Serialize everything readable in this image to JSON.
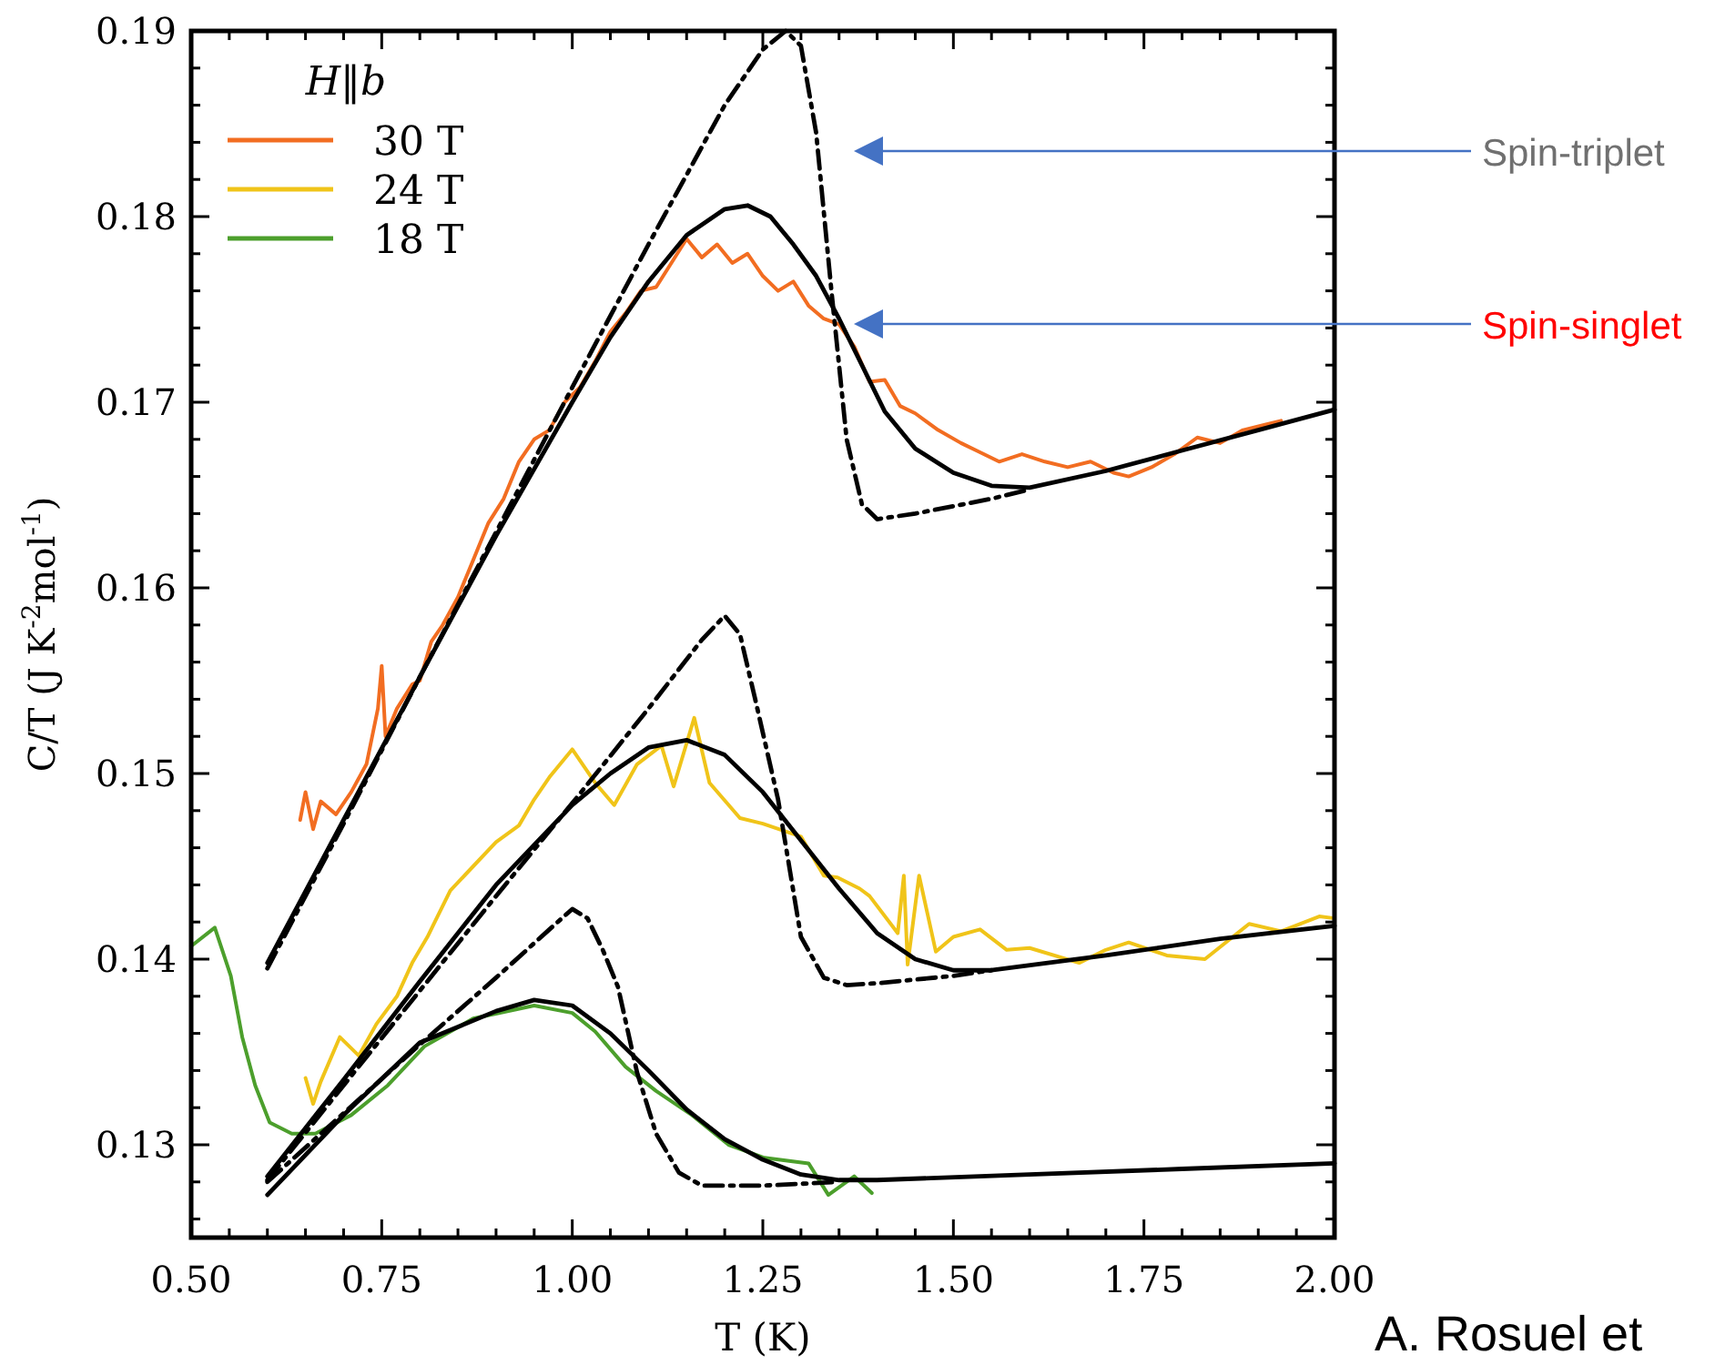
{
  "chart_data": {
    "type": "line",
    "xlabel": "T (K)",
    "ylabel": "C/T (J K$^{-2}$mol$^{-1}$)",
    "legend_title": "H‖b",
    "legend": "top left",
    "grid": false,
    "xlim": [
      0.5,
      2.0
    ],
    "ylim": [
      0.125,
      0.19
    ],
    "xticks": [
      {
        "value": 0.5,
        "label": "0.50"
      },
      {
        "value": 0.55,
        "label": null
      },
      {
        "value": 0.6,
        "label": null
      },
      {
        "value": 0.65,
        "label": null
      },
      {
        "value": 0.7,
        "label": null
      },
      {
        "value": 0.75,
        "label": "0.75"
      },
      {
        "value": 0.8,
        "label": null
      },
      {
        "value": 0.85,
        "label": null
      },
      {
        "value": 0.9,
        "label": null
      },
      {
        "value": 0.95,
        "label": null
      },
      {
        "value": 1.0,
        "label": "1.00"
      },
      {
        "value": 1.05,
        "label": null
      },
      {
        "value": 1.1,
        "label": null
      },
      {
        "value": 1.15,
        "label": null
      },
      {
        "value": 1.2,
        "label": null
      },
      {
        "value": 1.25,
        "label": "1.25"
      },
      {
        "value": 1.3,
        "label": null
      },
      {
        "value": 1.35,
        "label": null
      },
      {
        "value": 1.4,
        "label": null
      },
      {
        "value": 1.45,
        "label": null
      },
      {
        "value": 1.5,
        "label": "1.50"
      },
      {
        "value": 1.55,
        "label": null
      },
      {
        "value": 1.6,
        "label": null
      },
      {
        "value": 1.65,
        "label": null
      },
      {
        "value": 1.7,
        "label": null
      },
      {
        "value": 1.75,
        "label": "1.75"
      },
      {
        "value": 1.8,
        "label": null
      },
      {
        "value": 1.85,
        "label": null
      },
      {
        "value": 1.9,
        "label": null
      },
      {
        "value": 1.95,
        "label": null
      },
      {
        "value": 2.0,
        "label": "2.00"
      }
    ],
    "yticks": [
      {
        "value": 0.126,
        "label": null
      },
      {
        "value": 0.128,
        "label": null
      },
      0.13,
      {
        "value": 0.132,
        "label": null
      },
      {
        "value": 0.134,
        "label": null
      },
      {
        "value": 0.136,
        "label": null
      },
      {
        "value": 0.138,
        "label": null
      },
      0.14,
      {
        "value": 0.142,
        "label": null
      },
      {
        "value": 0.144,
        "label": null
      },
      {
        "value": 0.146,
        "label": null
      },
      {
        "value": 0.148,
        "label": null
      },
      0.15,
      {
        "value": 0.152,
        "label": null
      },
      {
        "value": 0.154,
        "label": null
      },
      {
        "value": 0.156,
        "label": null
      },
      {
        "value": 0.158,
        "label": null
      },
      0.16,
      {
        "value": 0.162,
        "label": null
      },
      {
        "value": 0.164,
        "label": null
      },
      {
        "value": 0.166,
        "label": null
      },
      {
        "value": 0.168,
        "label": null
      },
      0.17,
      {
        "value": 0.172,
        "label": null
      },
      {
        "value": 0.174,
        "label": null
      },
      {
        "value": 0.176,
        "label": null
      },
      {
        "value": 0.178,
        "label": null
      },
      0.18,
      {
        "value": 0.182,
        "label": null
      },
      {
        "value": 0.184,
        "label": null
      },
      {
        "value": 0.186,
        "label": null
      },
      {
        "value": 0.188,
        "label": null
      },
      0.19
    ],
    "series": [
      {
        "name": "30 T",
        "color": "#f26d21",
        "line_style": "solid",
        "x": [
          0.643,
          0.65,
          0.66,
          0.67,
          0.69,
          0.71,
          0.73,
          0.745,
          0.75,
          0.755,
          0.77,
          0.79,
          0.8,
          0.815,
          0.83,
          0.85,
          0.87,
          0.89,
          0.91,
          0.93,
          0.95,
          0.97,
          0.99,
          1.01,
          1.03,
          1.05,
          1.07,
          1.09,
          1.11,
          1.13,
          1.15,
          1.17,
          1.19,
          1.21,
          1.23,
          1.25,
          1.27,
          1.29,
          1.31,
          1.33,
          1.35,
          1.37,
          1.39,
          1.41,
          1.43,
          1.45,
          1.48,
          1.51,
          1.53,
          1.56,
          1.59,
          1.62,
          1.65,
          1.68,
          1.71,
          1.73,
          1.76,
          1.79,
          1.82,
          1.85,
          1.88,
          1.91,
          1.93
        ],
        "values": [
          0.1475,
          0.149,
          0.147,
          0.1485,
          0.1478,
          0.149,
          0.1505,
          0.1535,
          0.1558,
          0.152,
          0.1535,
          0.1548,
          0.155,
          0.1571,
          0.158,
          0.1595,
          0.1615,
          0.1635,
          0.1648,
          0.1668,
          0.168,
          0.1685,
          0.17,
          0.1708,
          0.1722,
          0.1738,
          0.1748,
          0.176,
          0.1762,
          0.1775,
          0.1788,
          0.1778,
          0.1785,
          0.1775,
          0.178,
          0.1768,
          0.176,
          0.1765,
          0.1752,
          0.1745,
          0.1742,
          0.173,
          0.1711,
          0.1712,
          0.1698,
          0.1694,
          0.1685,
          0.1678,
          0.1674,
          0.1668,
          0.1672,
          0.1668,
          0.1665,
          0.1668,
          0.1662,
          0.166,
          0.1665,
          0.1672,
          0.1681,
          0.1678,
          0.1685,
          0.1688,
          0.169
        ]
      },
      {
        "name": "24 T",
        "color": "#f0c419",
        "line_style": "solid",
        "x": [
          0.65,
          0.66,
          0.67,
          0.695,
          0.72,
          0.743,
          0.77,
          0.79,
          0.81,
          0.84,
          0.87,
          0.9,
          0.93,
          0.95,
          0.97,
          1.0,
          1.03,
          1.055,
          1.085,
          1.117,
          1.133,
          1.16,
          1.18,
          1.22,
          1.25,
          1.3,
          1.33,
          1.348,
          1.377,
          1.39,
          1.427,
          1.435,
          1.44,
          1.455,
          1.477,
          1.5,
          1.535,
          1.57,
          1.6,
          1.665,
          1.7,
          1.73,
          1.78,
          1.83,
          1.888,
          1.93,
          1.98,
          2.0
        ],
        "values": [
          0.1336,
          0.1322,
          0.1334,
          0.1358,
          0.1348,
          0.1365,
          0.138,
          0.1398,
          0.1412,
          0.1437,
          0.145,
          0.1463,
          0.1472,
          0.1486,
          0.1498,
          0.1513,
          0.1495,
          0.1483,
          0.1505,
          0.1515,
          0.1493,
          0.153,
          0.1495,
          0.1476,
          0.1473,
          0.1466,
          0.1445,
          0.1444,
          0.1438,
          0.1434,
          0.1414,
          0.1445,
          0.1397,
          0.1445,
          0.1404,
          0.1412,
          0.1416,
          0.1405,
          0.1406,
          0.1398,
          0.1405,
          0.1409,
          0.1402,
          0.14,
          0.1419,
          0.1415,
          0.1423,
          0.1422
        ]
      },
      {
        "name": "18 T",
        "color": "#4c9f2c",
        "line_style": "solid",
        "x": [
          0.5,
          0.531,
          0.552,
          0.567,
          0.584,
          0.603,
          0.632,
          0.663,
          0.71,
          0.758,
          0.806,
          0.87,
          0.95,
          1.0,
          1.03,
          1.07,
          1.11,
          1.157,
          1.205,
          1.252,
          1.31,
          1.336,
          1.37,
          1.393
        ],
        "values": [
          0.1407,
          0.1417,
          0.1391,
          0.1358,
          0.1332,
          0.1312,
          0.1306,
          0.1306,
          0.1316,
          0.1332,
          0.1353,
          0.1368,
          0.1375,
          0.1371,
          0.1361,
          0.1342,
          0.1329,
          0.1316,
          0.13,
          0.1293,
          0.129,
          0.1273,
          0.1283,
          0.1274
        ]
      },
      {
        "color": "#000000",
        "line_style": "solid",
        "x": [
          0.6,
          0.7,
          0.8,
          0.9,
          1.0,
          1.05,
          1.1,
          1.15,
          1.2,
          1.23,
          1.26,
          1.29,
          1.32,
          1.35,
          1.38,
          1.41,
          1.45,
          1.5,
          1.55,
          1.6,
          1.7,
          1.8,
          1.9,
          2.0
        ],
        "values": [
          0.1398,
          0.1475,
          0.1552,
          0.1628,
          0.17,
          0.1735,
          0.1765,
          0.179,
          0.1804,
          0.1806,
          0.18,
          0.1785,
          0.1768,
          0.1745,
          0.172,
          0.1695,
          0.1675,
          0.1662,
          0.1655,
          0.1654,
          0.1663,
          0.1674,
          0.1685,
          0.1696
        ]
      },
      {
        "color": "#000000",
        "line_style": "dashed",
        "x": [
          0.6,
          0.7,
          0.8,
          0.9,
          1.0,
          1.1,
          1.2,
          1.25,
          1.28,
          1.3,
          1.32,
          1.34,
          1.36,
          1.38,
          1.4,
          1.45,
          1.5,
          1.55,
          1.6
        ],
        "values": [
          0.1395,
          0.1473,
          0.1552,
          0.163,
          0.1708,
          0.1785,
          0.186,
          0.189,
          0.19,
          0.1892,
          0.1845,
          0.176,
          0.168,
          0.1645,
          0.1637,
          0.164,
          0.1644,
          0.1648,
          0.1653
        ]
      },
      {
        "color": "#000000",
        "line_style": "solid",
        "x": [
          0.6,
          0.7,
          0.8,
          0.9,
          1.0,
          1.05,
          1.1,
          1.15,
          1.2,
          1.25,
          1.3,
          1.35,
          1.4,
          1.45,
          1.5,
          1.55,
          1.7,
          1.85,
          2.0
        ],
        "values": [
          0.1283,
          0.1335,
          0.1388,
          0.144,
          0.1483,
          0.15,
          0.1514,
          0.1518,
          0.151,
          0.149,
          0.1464,
          0.1438,
          0.1414,
          0.14,
          0.1394,
          0.1394,
          0.1402,
          0.1411,
          0.1418
        ]
      },
      {
        "color": "#000000",
        "line_style": "dashed",
        "x": [
          0.6,
          0.7,
          0.8,
          0.9,
          1.0,
          1.1,
          1.17,
          1.2,
          1.22,
          1.24,
          1.27,
          1.3,
          1.33,
          1.36,
          1.4,
          1.45,
          1.5,
          1.55
        ],
        "values": [
          0.1281,
          0.1332,
          0.1383,
          0.1434,
          0.1484,
          0.1535,
          0.1572,
          0.1585,
          0.1575,
          0.154,
          0.1486,
          0.1412,
          0.139,
          0.1386,
          0.1387,
          0.1389,
          0.1391,
          0.1394
        ]
      },
      {
        "color": "#000000",
        "line_style": "solid",
        "x": [
          0.6,
          0.7,
          0.8,
          0.9,
          0.95,
          1.0,
          1.05,
          1.1,
          1.15,
          1.2,
          1.25,
          1.3,
          1.35,
          1.4,
          1.6,
          1.8,
          2.0
        ],
        "values": [
          0.1273,
          0.1316,
          0.1355,
          0.1372,
          0.1378,
          0.1375,
          0.136,
          0.134,
          0.1319,
          0.1303,
          0.1292,
          0.1284,
          0.1281,
          0.1281,
          0.1284,
          0.1287,
          0.129
        ]
      },
      {
        "color": "#000000",
        "line_style": "dashed",
        "x": [
          0.6,
          0.7,
          0.8,
          0.9,
          0.97,
          1.0,
          1.02,
          1.04,
          1.06,
          1.085,
          1.11,
          1.14,
          1.17,
          1.25,
          1.35
        ],
        "values": [
          0.128,
          0.1317,
          0.1354,
          0.139,
          0.1416,
          0.1427,
          0.1422,
          0.1405,
          0.1385,
          0.1339,
          0.1306,
          0.1285,
          0.1278,
          0.1278,
          0.128
        ]
      }
    ],
    "annotations": [
      "Spin-triplet",
      "Spin-singlet",
      "A. Rosuel et"
    ]
  }
}
